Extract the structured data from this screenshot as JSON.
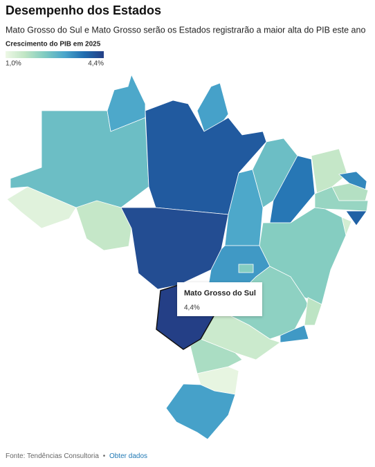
{
  "chart_data": {
    "type": "choropleth",
    "title": "Desempenho dos Estados",
    "subtitle": "Mato Grosso do Sul e Mato Grosso serão os Estados registrarão a maior alta do PIB este ano",
    "legend_title": "Crescimento do PIB em 2025",
    "legend_ticks": [
      {
        "value": 1.0,
        "label": "1,0%"
      },
      {
        "value": 4.4,
        "label": "4,4%"
      }
    ],
    "colorscale": [
      "#eef8e6",
      "#bfe5c4",
      "#7fcbc1",
      "#4aa6cb",
      "#1f6db0",
      "#243f86"
    ],
    "values": [
      1.2,
      2.6,
      3.0,
      3.1,
      4.0,
      1.6,
      4.2,
      3.0,
      2.6,
      3.6,
      1.6,
      3.4,
      1.8,
      2.1,
      3.9,
      1.4,
      2.3,
      3.2,
      2.3,
      2.2,
      1.7,
      3.2,
      1.5,
      4.4,
      1.9,
      1.1,
      3.1
    ],
    "tooltip": {
      "name": "Mato Grosso do Sul",
      "label": "4,4%"
    },
    "source": "Fonte: Tendências Consultoria",
    "separator": "•",
    "link": "Obter dados"
  }
}
